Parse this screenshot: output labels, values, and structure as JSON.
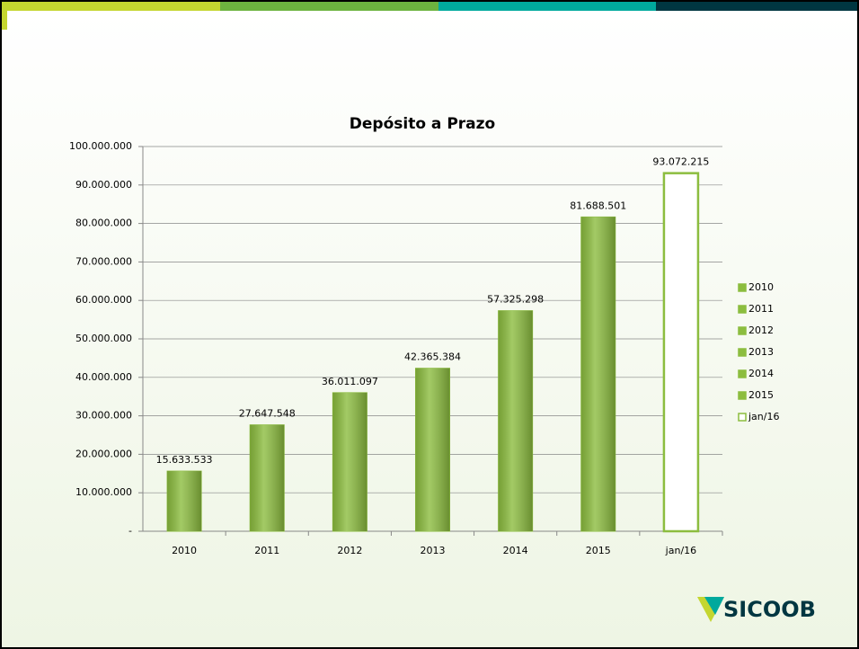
{
  "logo": "SICOOB",
  "chart_data": {
    "type": "bar",
    "title": "Depósito a Prazo",
    "categories": [
      "2010",
      "2011",
      "2012",
      "2013",
      "2014",
      "2015",
      "jan/16"
    ],
    "values": [
      15633533,
      27647548,
      36011097,
      42365384,
      57325298,
      81688501,
      93072215
    ],
    "value_labels": [
      "15.633.533",
      "27.647.548",
      "36.011.097",
      "42.365.384",
      "57.325.298",
      "81.688.501",
      "93.072.215"
    ],
    "colors": [
      "#8cbd3f",
      "#8cbd3f",
      "#8cbd3f",
      "#8cbd3f",
      "#8cbd3f",
      "#8cbd3f",
      "#ffffff"
    ],
    "edge_color": "#8cbd3f",
    "ylim": [
      0,
      100000000
    ],
    "yticks": [
      {
        "value": 0,
        "label": "-"
      },
      {
        "value": 10000000,
        "label": "10.000.000"
      },
      {
        "value": 20000000,
        "label": "20.000.000"
      },
      {
        "value": 30000000,
        "label": "30.000.000"
      },
      {
        "value": 40000000,
        "label": "40.000.000"
      },
      {
        "value": 50000000,
        "label": "50.000.000"
      },
      {
        "value": 60000000,
        "label": "60.000.000"
      },
      {
        "value": 70000000,
        "label": "70.000.000"
      },
      {
        "value": 80000000,
        "label": "80.000.000"
      },
      {
        "value": 90000000,
        "label": "90.000.000"
      },
      {
        "value": 100000000,
        "label": "100.000.000"
      }
    ],
    "grid": true,
    "legend": "right"
  }
}
